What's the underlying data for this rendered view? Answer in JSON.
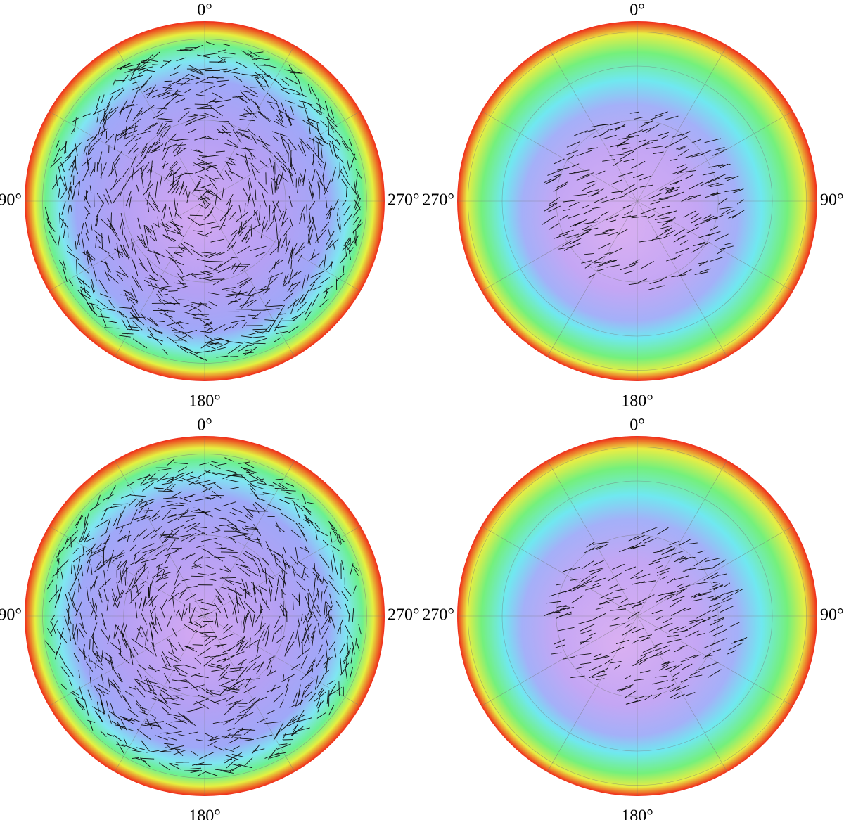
{
  "panels": [
    {
      "top": "0°",
      "left": "90°",
      "bottom": "180°",
      "right": "270°"
    },
    {
      "top": "0°",
      "left": "270°",
      "bottom": "180°",
      "right": "90°"
    },
    {
      "top": "0°",
      "left": "90°",
      "bottom": "180°",
      "right": "270°"
    },
    {
      "top": "0°",
      "left": "270°",
      "bottom": "180°",
      "right": "90°"
    }
  ]
}
